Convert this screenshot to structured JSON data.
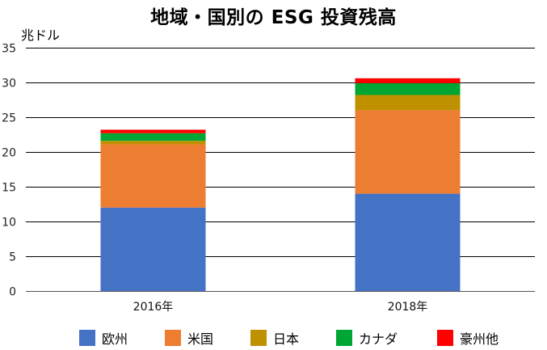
{
  "chart_data": {
    "type": "bar",
    "stacked": true,
    "title": "地域・国別の ESG 投資残高",
    "ylabel": "兆ドル",
    "xlabel": "",
    "ylim": [
      0,
      35
    ],
    "yticks": [
      0,
      5,
      10,
      15,
      20,
      25,
      30,
      35
    ],
    "grid": true,
    "legend_position": "bottom",
    "categories": [
      "2016年",
      "2018年"
    ],
    "series": [
      {
        "name": "欧州",
        "color": "#4472C4",
        "values": [
          12.0,
          14.0
        ]
      },
      {
        "name": "米国",
        "color": "#ED7D31",
        "values": [
          9.1,
          12.0
        ]
      },
      {
        "name": "日本",
        "color": "#BF9000",
        "values": [
          0.5,
          2.2
        ]
      },
      {
        "name": "カナダ",
        "color": "#00A633",
        "values": [
          1.1,
          1.7
        ]
      },
      {
        "name": "豪州他",
        "color": "#FF0000",
        "values": [
          0.5,
          0.7
        ]
      }
    ]
  }
}
